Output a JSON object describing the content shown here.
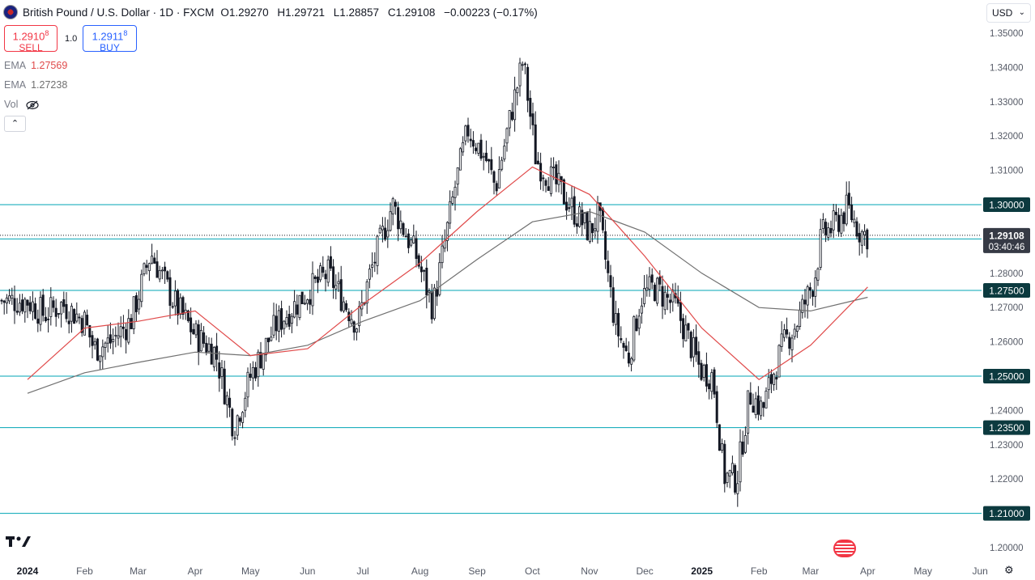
{
  "header": {
    "title": "British Pound / U.S. Dollar · 1D · FXCM",
    "ohlc": [
      {
        "key": "O",
        "value": "1.29270"
      },
      {
        "key": "H",
        "value": "1.29721"
      },
      {
        "key": "L",
        "value": "1.28857"
      },
      {
        "key": "C",
        "value": "1.29108"
      }
    ],
    "change": "−0.00223 (−0.17%)"
  },
  "trade": {
    "sell_price": "1.2910",
    "sell_sup": "8",
    "sell_label": "SELL",
    "buy_price": "1.2911",
    "buy_sup": "8",
    "buy_label": "BUY",
    "quantity": "1.0"
  },
  "indicators": [
    {
      "name": "EMA",
      "value": "1.27569",
      "color": "#e04a4a"
    },
    {
      "name": "EMA",
      "value": "1.27238",
      "color": "#707070"
    },
    {
      "name": "Vol",
      "value": ""
    }
  ],
  "currency": "USD",
  "price_labels": {
    "current": "1.29108",
    "countdown": "03:40:46"
  },
  "colors": {
    "level_line": "#00a5b5",
    "level_label_bg": "#0c3a3f",
    "current_label_bg": "#363a45",
    "candle": "#131722",
    "ema_fast": "#e04a4a",
    "ema_slow": "#707070"
  },
  "chart_data": {
    "type": "candlestick",
    "y_axis_ticks": [
      "1.35000",
      "1.34000",
      "1.33000",
      "1.32000",
      "1.31000",
      "1.28000",
      "1.27000",
      "1.26000",
      "1.24000",
      "1.23000",
      "1.22000",
      "1.20000"
    ],
    "ylim": [
      1.195,
      1.353
    ],
    "x_axis_labels": [
      "2024",
      "Feb",
      "Mar",
      "Apr",
      "May",
      "Jun",
      "Jul",
      "Aug",
      "Sep",
      "Oct",
      "Nov",
      "Dec",
      "2025",
      "Feb",
      "Mar",
      "Apr",
      "May",
      "Jun"
    ],
    "x_dates": [
      "2024-01-01",
      "2024-02-01",
      "2024-03-01",
      "2024-04-01",
      "2024-05-01",
      "2024-06-01",
      "2024-07-01",
      "2024-08-01",
      "2024-09-01",
      "2024-10-01",
      "2024-11-01",
      "2024-12-01",
      "2025-01-01",
      "2025-02-01",
      "2025-03-01",
      "2025-04-01",
      "2025-05-01",
      "2025-06-01"
    ],
    "horizontal_levels": [
      "1.30000",
      "1.29000",
      "1.27500",
      "1.25000",
      "1.23500",
      "1.21000"
    ],
    "close_path": [
      [
        "2024-01-01",
        1.272
      ],
      [
        "2024-01-10",
        1.268
      ],
      [
        "2024-01-20",
        1.271
      ],
      [
        "2024-02-01",
        1.266
      ],
      [
        "2024-02-06",
        1.258
      ],
      [
        "2024-02-15",
        1.26
      ],
      [
        "2024-02-26",
        1.266
      ],
      [
        "2024-03-08",
        1.286
      ],
      [
        "2024-03-20",
        1.272
      ],
      [
        "2024-04-01",
        1.262
      ],
      [
        "2024-04-12",
        1.257
      ],
      [
        "2024-04-22",
        1.235
      ],
      [
        "2024-05-01",
        1.25
      ],
      [
        "2024-05-15",
        1.265
      ],
      [
        "2024-05-31",
        1.274
      ],
      [
        "2024-06-12",
        1.28
      ],
      [
        "2024-06-28",
        1.265
      ],
      [
        "2024-07-05",
        1.28
      ],
      [
        "2024-07-17",
        1.3
      ],
      [
        "2024-07-30",
        1.285
      ],
      [
        "2024-08-08",
        1.27
      ],
      [
        "2024-08-20",
        1.305
      ],
      [
        "2024-08-27",
        1.322
      ],
      [
        "2024-09-06",
        1.313
      ],
      [
        "2024-09-11",
        1.305
      ],
      [
        "2024-09-20",
        1.328
      ],
      [
        "2024-09-26",
        1.342
      ],
      [
        "2024-10-03",
        1.313
      ],
      [
        "2024-10-15",
        1.305
      ],
      [
        "2024-10-25",
        1.297
      ],
      [
        "2024-11-01",
        1.292
      ],
      [
        "2024-11-06",
        1.297
      ],
      [
        "2024-11-15",
        1.265
      ],
      [
        "2024-11-22",
        1.255
      ],
      [
        "2024-11-29",
        1.273
      ],
      [
        "2024-12-06",
        1.276
      ],
      [
        "2024-12-18",
        1.27
      ],
      [
        "2024-12-31",
        1.252
      ],
      [
        "2025-01-07",
        1.25
      ],
      [
        "2025-01-13",
        1.221
      ],
      [
        "2025-01-20",
        1.22
      ],
      [
        "2025-01-27",
        1.245
      ],
      [
        "2025-02-03",
        1.24
      ],
      [
        "2025-02-07",
        1.248
      ],
      [
        "2025-02-14",
        1.259
      ],
      [
        "2025-02-21",
        1.265
      ],
      [
        "2025-03-03",
        1.278
      ],
      [
        "2025-03-07",
        1.291
      ],
      [
        "2025-03-14",
        1.294
      ],
      [
        "2025-03-21",
        1.299
      ],
      [
        "2025-03-28",
        1.292
      ],
      [
        "2025-04-01",
        1.291
      ]
    ],
    "ema_fast_path": [
      [
        "2024-01-01",
        1.249
      ],
      [
        "2024-02-01",
        1.264
      ],
      [
        "2024-03-01",
        1.266
      ],
      [
        "2024-04-01",
        1.269
      ],
      [
        "2024-05-01",
        1.256
      ],
      [
        "2024-06-01",
        1.258
      ],
      [
        "2024-07-01",
        1.271
      ],
      [
        "2024-08-01",
        1.283
      ],
      [
        "2024-09-01",
        1.298
      ],
      [
        "2024-10-01",
        1.311
      ],
      [
        "2024-11-01",
        1.303
      ],
      [
        "2024-12-01",
        1.285
      ],
      [
        "2025-01-01",
        1.264
      ],
      [
        "2025-02-01",
        1.249
      ],
      [
        "2025-03-01",
        1.259
      ],
      [
        "2025-04-01",
        1.276
      ]
    ],
    "ema_slow_path": [
      [
        "2024-01-01",
        1.245
      ],
      [
        "2024-02-01",
        1.251
      ],
      [
        "2024-03-01",
        1.254
      ],
      [
        "2024-04-01",
        1.257
      ],
      [
        "2024-05-01",
        1.256
      ],
      [
        "2024-06-01",
        1.259
      ],
      [
        "2024-07-01",
        1.266
      ],
      [
        "2024-08-01",
        1.272
      ],
      [
        "2024-09-01",
        1.284
      ],
      [
        "2024-10-01",
        1.295
      ],
      [
        "2024-11-01",
        1.298
      ],
      [
        "2024-12-01",
        1.292
      ],
      [
        "2025-01-01",
        1.28
      ],
      [
        "2025-02-01",
        1.27
      ],
      [
        "2025-03-01",
        1.269
      ],
      [
        "2025-04-01",
        1.273
      ]
    ]
  }
}
